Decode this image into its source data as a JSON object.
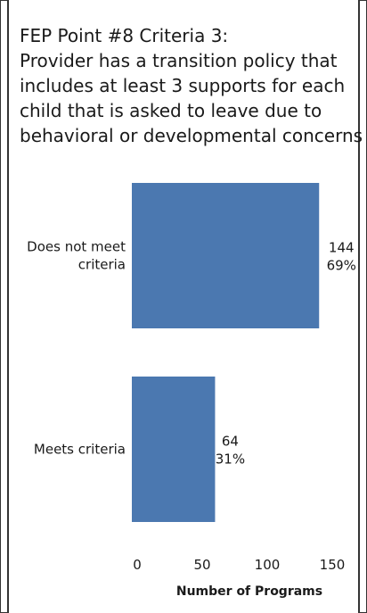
{
  "chart_data": {
    "type": "bar",
    "orientation": "horizontal",
    "title_lines": [
      "FEP Point #8 Criteria 3:",
      "Provider has a transition policy that",
      "includes at least 3 supports for each",
      "child that is asked to leave due to",
      "behavioral or developmental concerns"
    ],
    "categories": [
      [
        "Does not meet",
        "criteria"
      ],
      [
        "Meets criteria"
      ]
    ],
    "values": [
      144,
      64
    ],
    "percent_labels": [
      "69%",
      "31%"
    ],
    "xlabel": "Number of Programs",
    "xlim": [
      0,
      150
    ],
    "xticks": [
      0,
      50,
      100,
      150
    ],
    "bar_color": "#4b78b0",
    "grid": false
  }
}
